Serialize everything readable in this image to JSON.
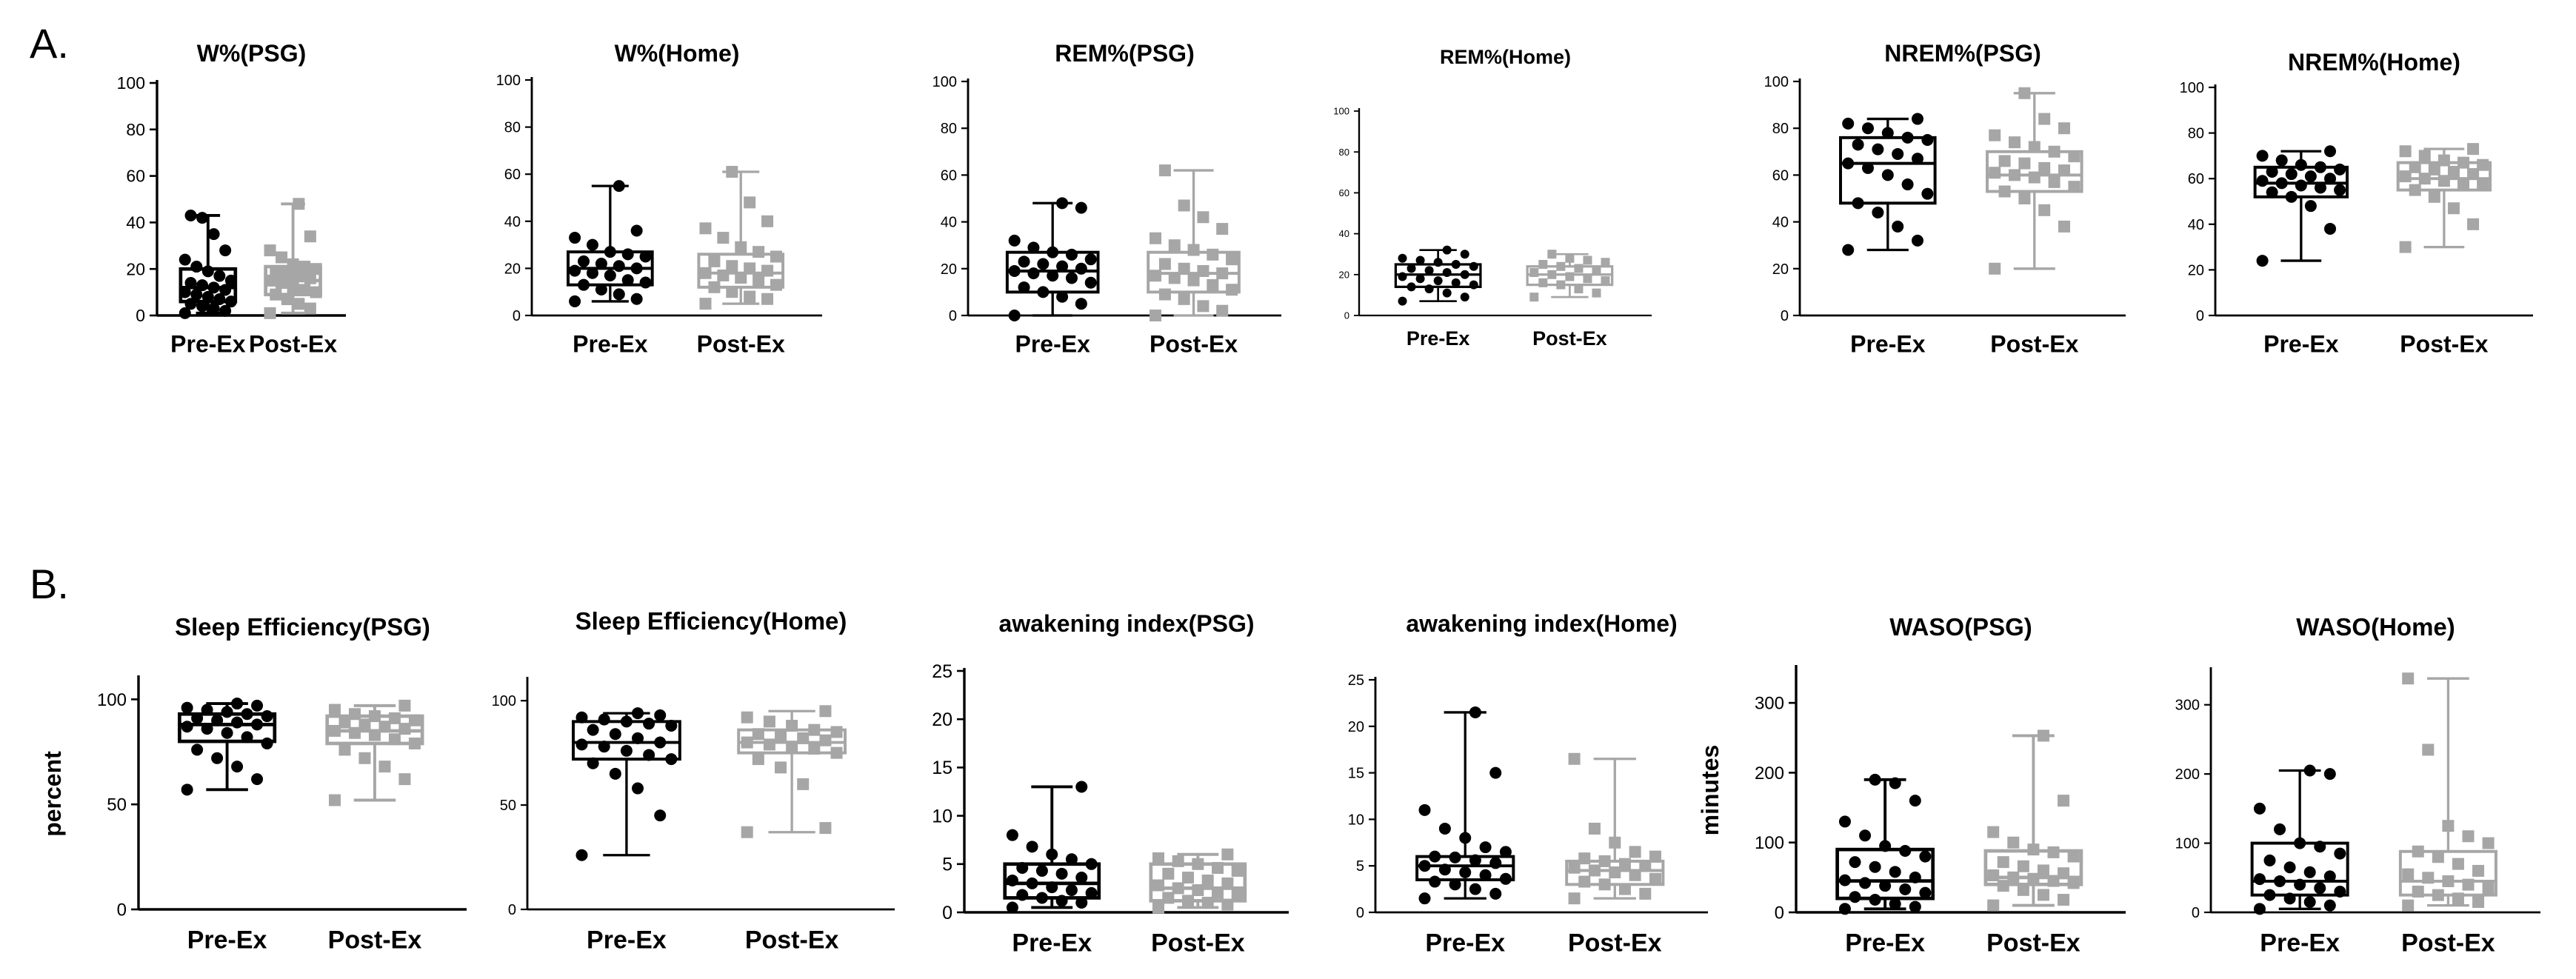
{
  "panels": [
    {
      "label": "A."
    },
    {
      "label": "B."
    }
  ],
  "colors": {
    "pre": "#000000",
    "post": "#a6a6a6"
  },
  "chart_data": [
    {
      "type": "box",
      "title": "W%(PSG)",
      "ylabel": "",
      "ylim": [
        0,
        100
      ],
      "yticks": [
        0,
        20,
        40,
        60,
        80,
        100
      ],
      "categories": [
        "Pre-Ex",
        "Post-Ex"
      ],
      "series": [
        {
          "category": "Pre-Ex",
          "min": 1,
          "q1": 6,
          "median": 12,
          "q3": 20,
          "max": 43,
          "points": [
            1,
            2,
            3,
            4,
            5,
            6,
            7,
            8,
            9,
            10,
            11,
            12,
            13,
            14,
            15,
            17,
            19,
            21,
            24,
            28,
            35,
            42,
            43
          ]
        },
        {
          "category": "Post-Ex",
          "min": 1,
          "q1": 9,
          "median": 15,
          "q3": 21,
          "max": 48,
          "points": [
            1,
            3,
            5,
            7,
            9,
            10,
            11,
            12,
            14,
            15,
            16,
            17,
            18,
            19,
            20,
            21,
            22,
            25,
            28,
            34,
            48
          ]
        }
      ]
    },
    {
      "type": "box",
      "title": "W%(Home)",
      "ylabel": "",
      "ylim": [
        0,
        100
      ],
      "yticks": [
        0,
        20,
        40,
        60,
        80,
        100
      ],
      "categories": [
        "Pre-Ex",
        "Post-Ex"
      ],
      "series": [
        {
          "category": "Pre-Ex",
          "min": 6,
          "q1": 13,
          "median": 20,
          "q3": 27,
          "max": 55,
          "points": [
            6,
            7,
            9,
            11,
            13,
            14,
            15,
            17,
            18,
            19,
            20,
            21,
            22,
            23,
            25,
            26,
            27,
            30,
            33,
            36,
            55
          ]
        },
        {
          "category": "Post-Ex",
          "min": 5,
          "q1": 12,
          "median": 18,
          "q3": 26,
          "max": 61,
          "points": [
            5,
            7,
            8,
            10,
            12,
            13,
            15,
            16,
            17,
            18,
            19,
            20,
            21,
            23,
            25,
            27,
            29,
            33,
            37,
            40,
            48,
            61
          ]
        }
      ]
    },
    {
      "type": "box",
      "title": "REM%(PSG)",
      "ylabel": "",
      "ylim": [
        0,
        100
      ],
      "yticks": [
        0,
        20,
        40,
        60,
        80,
        100
      ],
      "categories": [
        "Pre-Ex",
        "Post-Ex"
      ],
      "series": [
        {
          "category": "Pre-Ex",
          "min": 0,
          "q1": 10,
          "median": 19,
          "q3": 27,
          "max": 48,
          "points": [
            0,
            5,
            8,
            10,
            12,
            14,
            16,
            17,
            18,
            19,
            20,
            21,
            22,
            23,
            24,
            26,
            27,
            29,
            32,
            46,
            48
          ]
        },
        {
          "category": "Post-Ex",
          "min": 0,
          "q1": 10,
          "median": 18,
          "q3": 27,
          "max": 62,
          "points": [
            0,
            2,
            4,
            7,
            9,
            11,
            13,
            15,
            16,
            17,
            18,
            19,
            20,
            22,
            24,
            26,
            28,
            30,
            33,
            37,
            42,
            47,
            62
          ]
        }
      ]
    },
    {
      "type": "box",
      "title": "REM%(Home)",
      "ylabel": "",
      "ylim": [
        0,
        100
      ],
      "yticks": [
        0,
        20,
        40,
        60,
        80,
        100
      ],
      "categories": [
        "Pre-Ex",
        "Post-Ex"
      ],
      "series": [
        {
          "category": "Pre-Ex",
          "min": 7,
          "q1": 14,
          "median": 20,
          "q3": 25,
          "max": 32,
          "points": [
            7,
            9,
            11,
            13,
            14,
            15,
            16,
            17,
            18,
            19,
            20,
            21,
            22,
            23,
            24,
            25,
            26,
            27,
            28,
            30,
            32
          ]
        },
        {
          "category": "Post-Ex",
          "min": 9,
          "q1": 15,
          "median": 20,
          "q3": 24,
          "max": 30,
          "points": [
            9,
            11,
            13,
            15,
            16,
            17,
            18,
            19,
            20,
            21,
            22,
            23,
            24,
            25,
            26,
            27,
            28,
            30
          ]
        }
      ]
    },
    {
      "type": "box",
      "title": "NREM%(PSG)",
      "ylabel": "",
      "ylim": [
        0,
        100
      ],
      "yticks": [
        0,
        20,
        40,
        60,
        80,
        100
      ],
      "categories": [
        "Pre-Ex",
        "Post-Ex"
      ],
      "series": [
        {
          "category": "Pre-Ex",
          "min": 28,
          "q1": 48,
          "median": 65,
          "q3": 76,
          "max": 84,
          "points": [
            28,
            32,
            38,
            44,
            48,
            52,
            56,
            60,
            63,
            65,
            67,
            69,
            71,
            73,
            75,
            76,
            78,
            80,
            82,
            84
          ]
        },
        {
          "category": "Post-Ex",
          "min": 20,
          "q1": 53,
          "median": 60,
          "q3": 70,
          "max": 95,
          "points": [
            20,
            38,
            45,
            50,
            53,
            55,
            57,
            59,
            60,
            61,
            62,
            63,
            65,
            66,
            68,
            70,
            72,
            74,
            77,
            80,
            84,
            95
          ]
        }
      ]
    },
    {
      "type": "box",
      "title": "NREM%(Home)",
      "ylabel": "",
      "ylim": [
        0,
        100
      ],
      "yticks": [
        0,
        20,
        40,
        60,
        80,
        100
      ],
      "categories": [
        "Pre-Ex",
        "Post-Ex"
      ],
      "series": [
        {
          "category": "Pre-Ex",
          "min": 24,
          "q1": 52,
          "median": 58,
          "q3": 65,
          "max": 72,
          "points": [
            24,
            38,
            48,
            52,
            54,
            55,
            56,
            57,
            58,
            59,
            60,
            61,
            62,
            63,
            64,
            65,
            66,
            68,
            70,
            72
          ]
        },
        {
          "category": "Post-Ex",
          "min": 30,
          "q1": 55,
          "median": 60,
          "q3": 67,
          "max": 73,
          "points": [
            30,
            40,
            47,
            52,
            55,
            57,
            58,
            59,
            60,
            61,
            62,
            63,
            64,
            65,
            66,
            67,
            68,
            70,
            72,
            73
          ]
        }
      ]
    },
    {
      "type": "box",
      "title": "Sleep Efficiency(PSG)",
      "ylabel": "percent",
      "ylim": [
        0,
        110
      ],
      "yticks": [
        0,
        50,
        100
      ],
      "categories": [
        "Pre-Ex",
        "Post-Ex"
      ],
      "series": [
        {
          "category": "Pre-Ex",
          "min": 57,
          "q1": 80,
          "median": 88,
          "q3": 93,
          "max": 98,
          "points": [
            57,
            62,
            68,
            72,
            76,
            79,
            82,
            84,
            86,
            87,
            88,
            89,
            90,
            91,
            92,
            93,
            94,
            95,
            96,
            97,
            98
          ]
        },
        {
          "category": "Post-Ex",
          "min": 52,
          "q1": 79,
          "median": 85,
          "q3": 92,
          "max": 97,
          "points": [
            52,
            62,
            68,
            72,
            76,
            79,
            81,
            83,
            84,
            85,
            86,
            87,
            88,
            89,
            90,
            91,
            92,
            93,
            95,
            97
          ]
        }
      ]
    },
    {
      "type": "box",
      "title": "Sleep Efficiency(Home)",
      "ylabel": "",
      "ylim": [
        0,
        110
      ],
      "yticks": [
        0,
        50,
        100
      ],
      "categories": [
        "Pre-Ex",
        "Post-Ex"
      ],
      "series": [
        {
          "category": "Pre-Ex",
          "min": 26,
          "q1": 72,
          "median": 80,
          "q3": 90,
          "max": 94,
          "points": [
            26,
            45,
            58,
            65,
            70,
            72,
            74,
            76,
            78,
            79,
            80,
            82,
            84,
            86,
            88,
            89,
            90,
            91,
            92,
            93,
            94
          ]
        },
        {
          "category": "Post-Ex",
          "min": 37,
          "q1": 75,
          "median": 80,
          "q3": 86,
          "max": 95,
          "points": [
            37,
            39,
            60,
            68,
            72,
            75,
            77,
            78,
            79,
            80,
            81,
            82,
            83,
            84,
            85,
            86,
            88,
            90,
            92,
            95
          ]
        }
      ]
    },
    {
      "type": "box",
      "title": "awakening index(PSG)",
      "ylabel": "",
      "ylim": [
        0,
        25
      ],
      "yticks": [
        0,
        5,
        10,
        15,
        20,
        25
      ],
      "categories": [
        "Pre-Ex",
        "Post-Ex"
      ],
      "series": [
        {
          "category": "Pre-Ex",
          "min": 0.5,
          "q1": 1.5,
          "median": 3,
          "q3": 5,
          "max": 13,
          "points": [
            0.5,
            1,
            1.2,
            1.5,
            1.8,
            2,
            2.3,
            2.6,
            3,
            3.3,
            3.6,
            4,
            4.3,
            4.6,
            5,
            5.5,
            6,
            6.8,
            8,
            13
          ]
        },
        {
          "category": "Post-Ex",
          "min": 0.5,
          "q1": 1.2,
          "median": 2.5,
          "q3": 5,
          "max": 6,
          "points": [
            0.5,
            0.8,
            1,
            1.2,
            1.5,
            1.8,
            2,
            2.3,
            2.5,
            2.8,
            3,
            3.3,
            3.6,
            4,
            4.3,
            4.6,
            5,
            5.3,
            5.6,
            6
          ]
        }
      ]
    },
    {
      "type": "box",
      "title": "awakening index(Home)",
      "ylabel": "",
      "ylim": [
        0,
        25
      ],
      "yticks": [
        0,
        5,
        10,
        15,
        20,
        25
      ],
      "categories": [
        "Pre-Ex",
        "Post-Ex"
      ],
      "series": [
        {
          "category": "Pre-Ex",
          "min": 1.5,
          "q1": 3.5,
          "median": 5,
          "q3": 6,
          "max": 21.5,
          "points": [
            1.5,
            2,
            2.5,
            3,
            3.3,
            3.6,
            4,
            4.3,
            4.6,
            5,
            5.3,
            5.6,
            5.9,
            6,
            6.5,
            7,
            8,
            9,
            11,
            15,
            21.5
          ]
        },
        {
          "category": "Post-Ex",
          "min": 1.5,
          "q1": 3,
          "median": 4.5,
          "q3": 5.5,
          "max": 16.5,
          "points": [
            1.5,
            2,
            2.5,
            3,
            3.3,
            3.6,
            4,
            4.3,
            4.5,
            4.8,
            5,
            5.2,
            5.5,
            5.8,
            6,
            6.5,
            7.5,
            9,
            16.5
          ]
        }
      ]
    },
    {
      "type": "box",
      "title": "WASO(PSG)",
      "ylabel": "minutes",
      "ylim": [
        0,
        350
      ],
      "yticks": [
        0,
        100,
        200,
        300
      ],
      "categories": [
        "Pre-Ex",
        "Post-Ex"
      ],
      "series": [
        {
          "category": "Pre-Ex",
          "min": 5,
          "q1": 20,
          "median": 45,
          "q3": 90,
          "max": 190,
          "points": [
            5,
            8,
            12,
            18,
            22,
            28,
            33,
            38,
            42,
            46,
            50,
            58,
            65,
            72,
            80,
            88,
            95,
            110,
            130,
            160,
            185,
            190
          ]
        },
        {
          "category": "Post-Ex",
          "min": 10,
          "q1": 40,
          "median": 50,
          "q3": 88,
          "max": 253,
          "points": [
            10,
            18,
            25,
            32,
            38,
            42,
            45,
            48,
            50,
            53,
            56,
            60,
            66,
            72,
            80,
            86,
            90,
            100,
            115,
            160,
            253
          ]
        }
      ]
    },
    {
      "type": "box",
      "title": "WASO(Home)",
      "ylabel": "",
      "ylim": [
        0,
        350
      ],
      "yticks": [
        0,
        100,
        200,
        300
      ],
      "categories": [
        "Pre-Ex",
        "Post-Ex"
      ],
      "series": [
        {
          "category": "Pre-Ex",
          "min": 5,
          "q1": 25,
          "median": 45,
          "q3": 100,
          "max": 205,
          "points": [
            5,
            10,
            15,
            20,
            25,
            30,
            35,
            40,
            45,
            48,
            52,
            58,
            65,
            75,
            85,
            95,
            100,
            120,
            150,
            200,
            205
          ]
        },
        {
          "category": "Post-Ex",
          "min": 10,
          "q1": 25,
          "median": 45,
          "q3": 88,
          "max": 338,
          "points": [
            10,
            15,
            20,
            25,
            30,
            35,
            40,
            45,
            50,
            55,
            60,
            70,
            80,
            88,
            100,
            110,
            125,
            235,
            338
          ]
        }
      ]
    }
  ]
}
